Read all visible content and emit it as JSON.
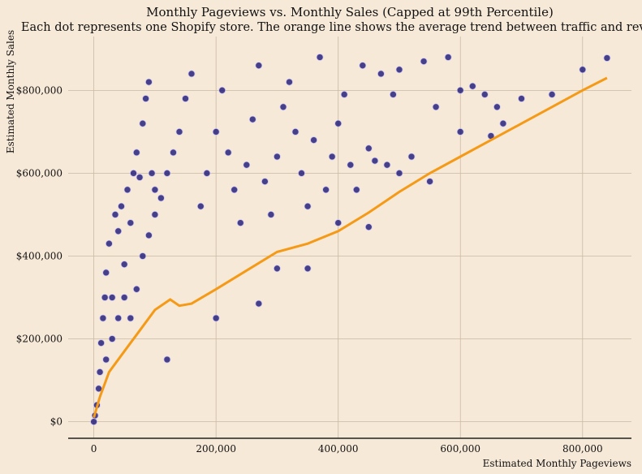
{
  "chart_data": {
    "type": "scatter",
    "title": "Monthly Pageviews vs. Monthly Sales (Capped at 99th Percentile)",
    "subtitle": "Each dot represents one Shopify store. The orange line shows the average trend between traffic and revenue.",
    "xlabel": "Estimated Monthly Pageviews",
    "ylabel": "Estimated Monthly Sales",
    "xlim": [
      -42000,
      880000
    ],
    "ylim": [
      -40000,
      930000
    ],
    "x_ticks": [
      0,
      200000,
      400000,
      600000,
      800000
    ],
    "x_tick_labels": [
      "0",
      "200,000",
      "400,000",
      "600,000",
      "800,000"
    ],
    "y_ticks": [
      0,
      200000,
      400000,
      600000,
      800000
    ],
    "y_tick_labels": [
      "$0",
      "$200,000",
      "$400,000",
      "$600,000",
      "$800,000"
    ],
    "grid": true,
    "series": [
      {
        "type": "scatter",
        "color": "#1f1a78",
        "points": [
          [
            0,
            0
          ],
          [
            2000,
            15000
          ],
          [
            5000,
            40000
          ],
          [
            8000,
            80000
          ],
          [
            10000,
            120000
          ],
          [
            12000,
            190000
          ],
          [
            15000,
            250000
          ],
          [
            18000,
            300000
          ],
          [
            20000,
            360000
          ],
          [
            25000,
            430000
          ],
          [
            30000,
            300000
          ],
          [
            35000,
            500000
          ],
          [
            40000,
            460000
          ],
          [
            45000,
            520000
          ],
          [
            50000,
            380000
          ],
          [
            55000,
            560000
          ],
          [
            60000,
            480000
          ],
          [
            65000,
            600000
          ],
          [
            70000,
            650000
          ],
          [
            75000,
            590000
          ],
          [
            80000,
            720000
          ],
          [
            85000,
            780000
          ],
          [
            90000,
            820000
          ],
          [
            95000,
            600000
          ],
          [
            100000,
            560000
          ],
          [
            20000,
            150000
          ],
          [
            30000,
            200000
          ],
          [
            40000,
            250000
          ],
          [
            50000,
            300000
          ],
          [
            60000,
            250000
          ],
          [
            70000,
            320000
          ],
          [
            80000,
            400000
          ],
          [
            90000,
            450000
          ],
          [
            100000,
            500000
          ],
          [
            110000,
            540000
          ],
          [
            120000,
            600000
          ],
          [
            130000,
            650000
          ],
          [
            140000,
            700000
          ],
          [
            150000,
            780000
          ],
          [
            160000,
            840000
          ],
          [
            175000,
            520000
          ],
          [
            185000,
            600000
          ],
          [
            200000,
            700000
          ],
          [
            210000,
            800000
          ],
          [
            220000,
            650000
          ],
          [
            230000,
            560000
          ],
          [
            240000,
            480000
          ],
          [
            250000,
            620000
          ],
          [
            260000,
            730000
          ],
          [
            270000,
            860000
          ],
          [
            280000,
            580000
          ],
          [
            290000,
            500000
          ],
          [
            300000,
            640000
          ],
          [
            310000,
            760000
          ],
          [
            320000,
            820000
          ],
          [
            330000,
            700000
          ],
          [
            340000,
            600000
          ],
          [
            350000,
            520000
          ],
          [
            360000,
            680000
          ],
          [
            370000,
            880000
          ],
          [
            380000,
            560000
          ],
          [
            390000,
            640000
          ],
          [
            400000,
            720000
          ],
          [
            410000,
            790000
          ],
          [
            420000,
            620000
          ],
          [
            430000,
            560000
          ],
          [
            440000,
            860000
          ],
          [
            450000,
            660000
          ],
          [
            460000,
            630000
          ],
          [
            470000,
            840000
          ],
          [
            480000,
            620000
          ],
          [
            490000,
            790000
          ],
          [
            500000,
            850000
          ],
          [
            520000,
            640000
          ],
          [
            540000,
            870000
          ],
          [
            560000,
            760000
          ],
          [
            580000,
            880000
          ],
          [
            600000,
            800000
          ],
          [
            620000,
            810000
          ],
          [
            640000,
            790000
          ],
          [
            660000,
            760000
          ],
          [
            670000,
            720000
          ],
          [
            120000,
            150000
          ],
          [
            200000,
            250000
          ],
          [
            300000,
            370000
          ],
          [
            400000,
            480000
          ],
          [
            500000,
            600000
          ],
          [
            600000,
            700000
          ],
          [
            700000,
            780000
          ],
          [
            800000,
            850000
          ],
          [
            270000,
            285000
          ],
          [
            350000,
            370000
          ],
          [
            450000,
            470000
          ],
          [
            550000,
            580000
          ],
          [
            650000,
            690000
          ],
          [
            750000,
            790000
          ],
          [
            840000,
            878000
          ]
        ]
      }
    ],
    "trend_line": {
      "color": "#f59a16",
      "x": [
        0,
        10000,
        25000,
        50000,
        75000,
        100000,
        125000,
        140000,
        160000,
        200000,
        250000,
        300000,
        350000,
        400000,
        450000,
        500000,
        550000,
        600000,
        650000,
        700000,
        750000,
        800000,
        840000
      ],
      "y": [
        10000,
        60000,
        120000,
        170000,
        220000,
        270000,
        295000,
        280000,
        285000,
        320000,
        365000,
        410000,
        430000,
        460000,
        505000,
        555000,
        600000,
        640000,
        680000,
        720000,
        760000,
        800000,
        830000
      ]
    }
  }
}
